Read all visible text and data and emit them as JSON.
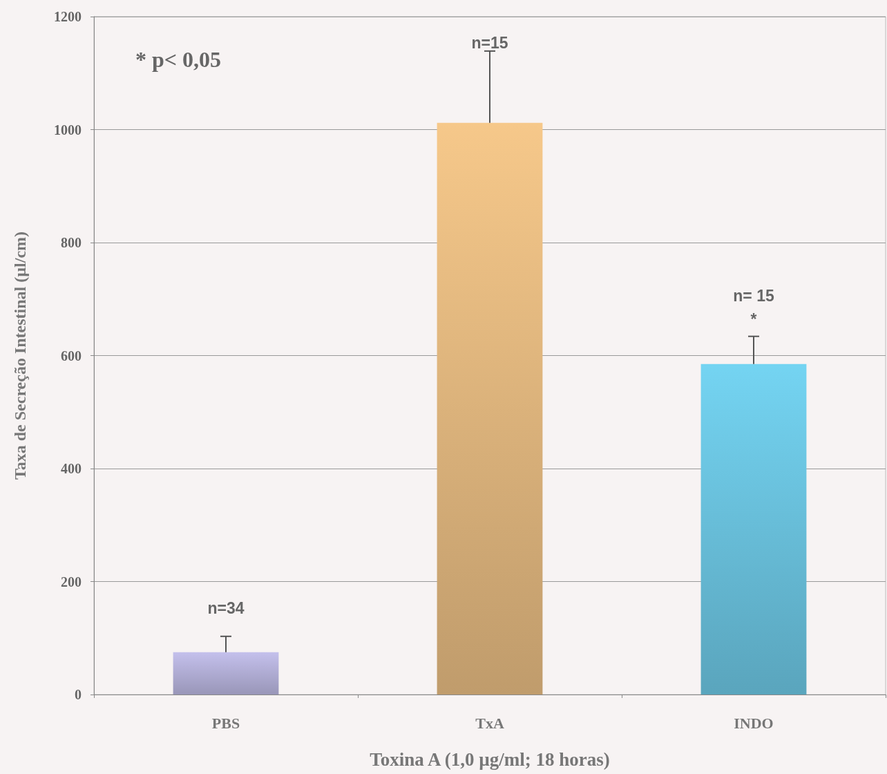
{
  "chart_data": {
    "type": "bar",
    "xlabel": "Toxina A (1,0 µg/ml; 18 horas)",
    "ylabel": "Taxa de Secreção Intestinal (µl/cm)",
    "categories": [
      "PBS",
      "TxA",
      "INDO"
    ],
    "values": [
      75,
      1012,
      585
    ],
    "colors": [
      "#c4c0ec",
      "#f6c88a",
      "#74d4f2"
    ],
    "errors": [
      [
        75,
        103
      ],
      [
        1012,
        1139
      ],
      [
        585,
        634
      ]
    ],
    "ylim": [
      0,
      1200
    ],
    "yticks": [
      0,
      200,
      400,
      600,
      800,
      1000,
      1200
    ],
    "grid": "y",
    "annotations": [
      "* p< 0,05",
      "n=34",
      "n=15",
      "n= 15",
      "*"
    ]
  }
}
